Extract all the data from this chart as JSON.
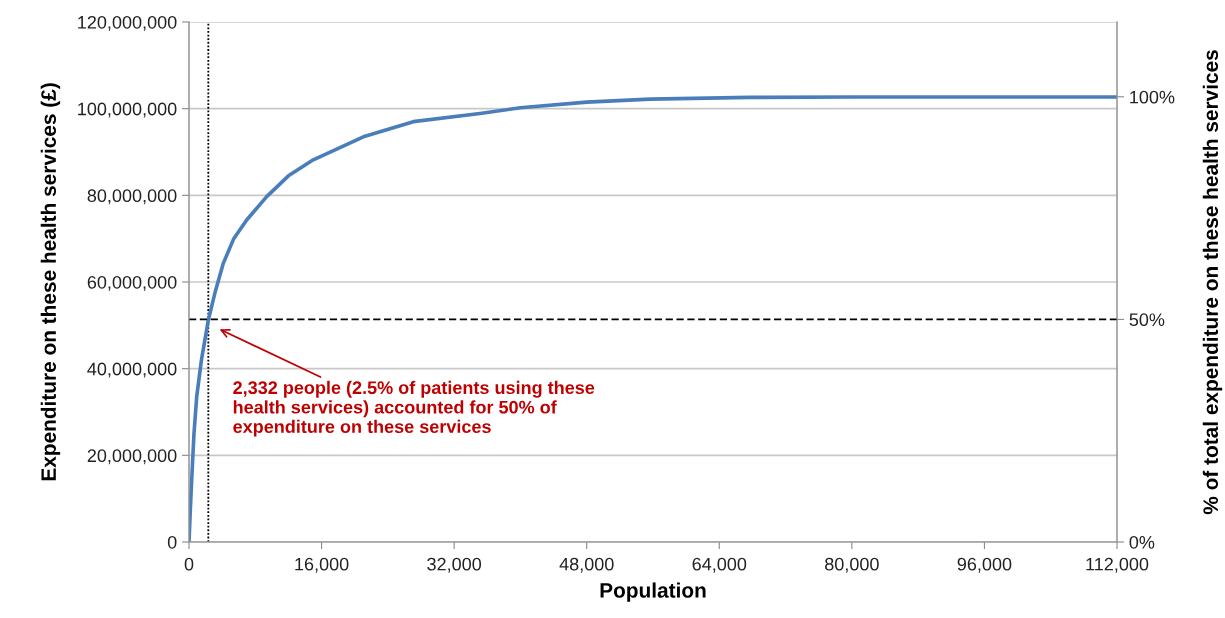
{
  "chart_data": {
    "type": "line",
    "xlabel": "Population",
    "ylabel": "Expenditure on these health services (£)",
    "y2label": "% of total expenditure on these health services",
    "x": [
      0,
      150,
      325,
      600,
      930,
      1500,
      2332,
      3200,
      4140,
      5400,
      6960,
      9375,
      12000,
      15000,
      21040,
      27070,
      35120,
      40000,
      48000,
      55640,
      67700,
      80000,
      96000,
      112000
    ],
    "series": [
      {
        "color": "#4a7ebb",
        "values": [
          0,
          7000000,
          14300000,
          25000000,
          33500000,
          42000000,
          51200000,
          58000000,
          64300000,
          70000000,
          74300000,
          79700000,
          84500000,
          88200000,
          93500000,
          97000000,
          98900000,
          100200000,
          101500000,
          102200000,
          102600000,
          102700000,
          102700000,
          102700000
        ]
      }
    ],
    "xlim": [
      0,
      112000
    ],
    "xticks": [
      0,
      {
        "value": 16000,
        "label": "16,000"
      },
      {
        "value": 32000,
        "label": "32,000"
      },
      {
        "value": 48000,
        "label": "48,000"
      },
      {
        "value": 64000,
        "label": "64,000"
      },
      {
        "value": 80000,
        "label": "80,000"
      },
      {
        "value": 96000,
        "label": "96,000"
      },
      {
        "value": 112000,
        "label": "112,000"
      }
    ],
    "ylim": [
      0,
      120000000
    ],
    "yticks": [
      0,
      {
        "value": 20000000,
        "label": "20,000,000"
      },
      {
        "value": 40000000,
        "label": "40,000,000"
      },
      {
        "value": 60000000,
        "label": "60,000,000"
      },
      {
        "value": 80000000,
        "label": "80,000,000"
      },
      {
        "value": 100000000,
        "label": "100,000,000"
      },
      {
        "value": 120000000,
        "label": "120,000,000"
      }
    ],
    "y2lim": [
      0,
      116.8
    ],
    "y2ticks": [
      {
        "value": 0,
        "label": "0%"
      },
      {
        "value": 50,
        "label": "50%"
      },
      {
        "value": 100,
        "label": "100%"
      }
    ],
    "ref_lines": [
      {
        "axis": "y2",
        "value": 50,
        "color": "#000000",
        "line_style": "dashed"
      },
      {
        "axis": "x",
        "value": 2332,
        "color": "#000000",
        "line_style": "dotted"
      }
    ],
    "annotations": [
      "2,332 people (2.5% of patients using these health services) accounted for 50% of expenditure on these services"
    ],
    "grid": "y",
    "marker": "none",
    "line_style": "solid"
  }
}
